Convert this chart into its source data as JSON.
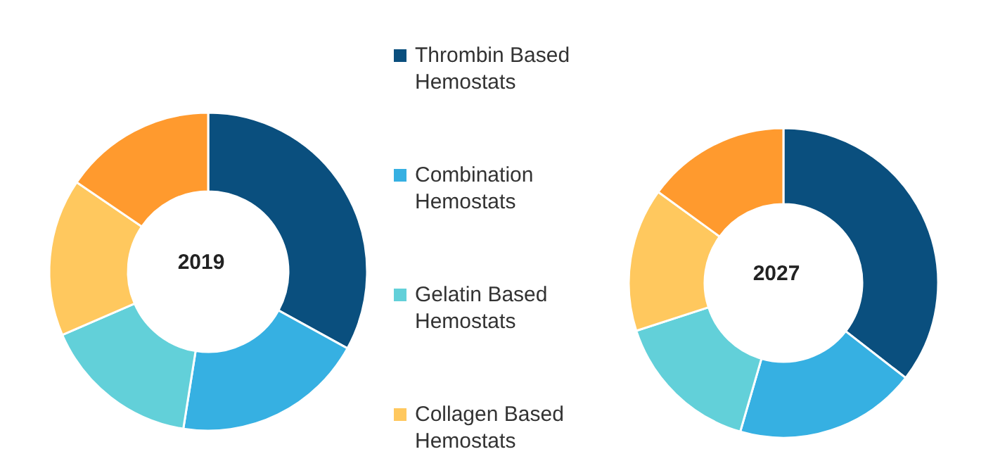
{
  "chart_data": [
    {
      "type": "donut",
      "title": "2019",
      "categories": [
        "Thrombin Based Hemostats",
        "Combination Hemostats",
        "Gelatin Based Hemostats",
        "Collagen Based Hemostats",
        null
      ],
      "values": [
        33,
        19.5,
        16,
        16,
        15.5
      ],
      "colors": [
        "#0a4f7e",
        "#36b0e2",
        "#62d0d9",
        "#ffc85e",
        "#ff9a2e"
      ],
      "legend": "right"
    },
    {
      "type": "donut",
      "title": "2027",
      "categories": [
        null,
        null,
        null,
        null,
        null
      ],
      "values": [
        35.5,
        19,
        15.5,
        15,
        15
      ],
      "colors": [
        "#0a4f7e",
        "#36b0e2",
        "#62d0d9",
        "#ffc85e",
        "#ff9a2e"
      ]
    }
  ]
}
